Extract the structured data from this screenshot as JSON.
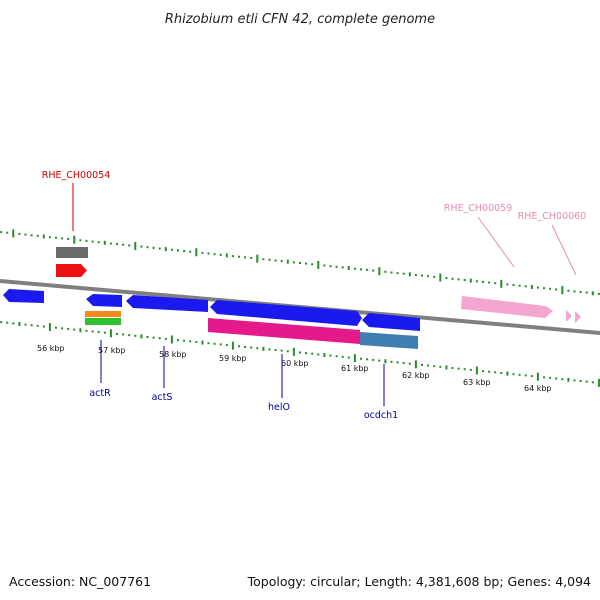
{
  "title": "Rhizobium etli CFN 42, complete genome",
  "accession": "Accession: NC_007761",
  "topology": "Topology: circular; Length: 4,381,608 bp; Genes: 4,094",
  "colors": {
    "backbone": "#7f7f7f",
    "ticks": "#2a8a2a",
    "gene_blue": "#1a1aee",
    "gene_magenta": "#e4198a",
    "gene_steel": "#3f7fb0",
    "gene_pink": "#f3a6cf",
    "gene_red": "#ee1111",
    "gene_gray": "#6a6a6a",
    "gene_orange": "#f08c1c",
    "gene_green": "#2fbf2f",
    "label_red": "#cc0000",
    "label_navy": "#000099",
    "label_pink": "#e58ab8"
  },
  "tick_labels": [
    "56 kbp",
    "57 kbp",
    "58 kbp",
    "59 kbp",
    "60 kbp",
    "61 kbp",
    "62 kbp",
    "63 kbp",
    "64 kbp"
  ],
  "gene_labels": {
    "rhe_ch00054": "RHE_CH00054",
    "rhe_ch00059": "RHE_CH00059",
    "rhe_ch00060": "RHE_CH00060",
    "actR": "actR",
    "actS": "actS",
    "helO": "helO",
    "ocdch1": "ocdch1"
  }
}
